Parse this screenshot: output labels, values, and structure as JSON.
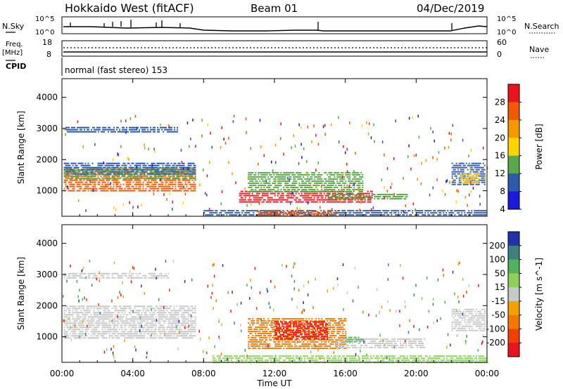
{
  "header": {
    "station": "Hokkaido West (fitACF)",
    "beam": "Beam 01",
    "date": "04/Dec/2019"
  },
  "top_panels": {
    "nsky_label": "N.Sky",
    "nsky_max": "10^5",
    "nsky_min": "10^0",
    "nsearch_label": "N.Search",
    "nsearch_max": "10^5",
    "nsearch_min": "10^0",
    "freq_label": "Freq.",
    "freq_unit": "[MHz]",
    "freq_max": "18",
    "freq_min": "8",
    "nave_label": "Nave",
    "nave_max": "60",
    "nave_min": "0",
    "cpid_label": "CPID",
    "cpid_text": "normal (fast stereo) 153"
  },
  "chart_data": [
    {
      "type": "heatmap",
      "name": "power",
      "ylabel": "Slant Range [km]",
      "xlabel": "",
      "colorbar_label": "Power [dB]",
      "colorbar_ticks": [
        "28",
        "24",
        "20",
        "16",
        "12",
        "8",
        "4"
      ],
      "colorbar_colors": [
        "#e8141e",
        "#f05a00",
        "#f49a00",
        "#ffd400",
        "#59a84a",
        "#2f5aa8",
        "#1a1ad8"
      ],
      "x_ticks": [
        "00:00",
        "04:00",
        "08:00",
        "12:00",
        "16:00",
        "20:00",
        "00:00"
      ],
      "y_ticks": [
        "1000",
        "2000",
        "3000",
        "4000"
      ],
      "xlim_hours": [
        0,
        24
      ],
      "ylim_km": [
        180,
        4600
      ],
      "patches": [
        {
          "t0": 0.1,
          "t1": 7.5,
          "r0": 1000,
          "r1": 1700,
          "color": "#f05a00",
          "level": 22
        },
        {
          "t0": 0.1,
          "t1": 7.5,
          "r0": 1350,
          "r1": 1750,
          "color": "#59a84a",
          "level": 12
        },
        {
          "t0": 0.1,
          "t1": 7.5,
          "r0": 1550,
          "r1": 1900,
          "color": "#2f5aa8",
          "level": 8
        },
        {
          "t0": 10.0,
          "t1": 17.5,
          "r0": 600,
          "r1": 1000,
          "color": "#e8141e",
          "level": 26
        },
        {
          "t0": 10.5,
          "t1": 17.0,
          "r0": 950,
          "r1": 1600,
          "color": "#59a84a",
          "level": 12
        },
        {
          "t0": 15.0,
          "t1": 19.5,
          "r0": 700,
          "r1": 900,
          "color": "#59a84a",
          "level": 12
        },
        {
          "t0": 8.0,
          "t1": 24.0,
          "r0": 180,
          "r1": 380,
          "color": "#2f5aa8",
          "level": 8
        },
        {
          "t0": 11.0,
          "t1": 15.5,
          "r0": 200,
          "r1": 350,
          "color": "#f05a00",
          "level": 20
        },
        {
          "t0": 22.0,
          "t1": 23.9,
          "r0": 1200,
          "r1": 1900,
          "color": "#2f5aa8",
          "level": 8
        },
        {
          "t0": 22.5,
          "t1": 23.6,
          "r0": 1250,
          "r1": 1550,
          "color": "#ffd400",
          "level": 16
        },
        {
          "t0": 0.2,
          "t1": 6.5,
          "r0": 2850,
          "r1": 3050,
          "color": "#2f5aa8",
          "level": 6
        }
      ]
    },
    {
      "type": "heatmap",
      "name": "velocity",
      "ylabel": "Slant Range [km]",
      "xlabel": "Time UT",
      "colorbar_label": "Velocity [m s^-1]",
      "colorbar_ticks": [
        "200",
        "100",
        "50",
        "15",
        "-15",
        "-50",
        "-100",
        "-200"
      ],
      "colorbar_colors": [
        "#2233aa",
        "#3f7f7f",
        "#52b25a",
        "#8ed15a",
        "#c8c8c8",
        "#f4a000",
        "#f47800",
        "#f04000",
        "#e8141e"
      ],
      "x_ticks": [
        "00:00",
        "04:00",
        "08:00",
        "12:00",
        "16:00",
        "20:00",
        "00:00"
      ],
      "y_ticks": [
        "1000",
        "2000",
        "3000",
        "4000"
      ],
      "xlim_hours": [
        0,
        24
      ],
      "ylim_km": [
        180,
        4600
      ],
      "patches": [
        {
          "t0": 0.1,
          "t1": 7.5,
          "r0": 950,
          "r1": 2000,
          "color": "#c8c8c8",
          "level": 0
        },
        {
          "t0": 0.1,
          "t1": 6.0,
          "r0": 2850,
          "r1": 3050,
          "color": "#c8c8c8",
          "level": 0
        },
        {
          "t0": 10.5,
          "t1": 16.0,
          "r0": 600,
          "r1": 1600,
          "color": "#f47800",
          "level": -80
        },
        {
          "t0": 12.0,
          "t1": 15.0,
          "r0": 900,
          "r1": 1500,
          "color": "#e8141e",
          "level": -180
        },
        {
          "t0": 15.5,
          "t1": 20.5,
          "r0": 650,
          "r1": 950,
          "color": "#c8c8c8",
          "level": 0
        },
        {
          "t0": 16.0,
          "t1": 17.0,
          "r0": 800,
          "r1": 1000,
          "color": "#52b25a",
          "level": 40
        },
        {
          "t0": 8.5,
          "t1": 24.0,
          "r0": 180,
          "r1": 400,
          "color": "#8ed15a",
          "level": 20
        },
        {
          "t0": 22.0,
          "t1": 23.9,
          "r0": 1200,
          "r1": 1900,
          "color": "#c8c8c8",
          "level": 0
        }
      ]
    }
  ]
}
